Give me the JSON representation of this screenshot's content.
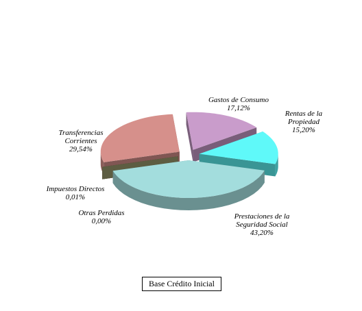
{
  "chart_data": {
    "type": "pie",
    "categories": [
      "Gastos de Consumo",
      "Rentas de la Propiedad",
      "Prestaciones de la Seguridad Social",
      "Otras Perdidas",
      "Impuestos Directos",
      "Transferencias Corrientes"
    ],
    "values": [
      17.12,
      15.2,
      43.2,
      0.0,
      0.01,
      29.54
    ],
    "value_labels": [
      "17,12%",
      "15,20%",
      "43,20%",
      "0,00%",
      "0,01%",
      "29,54%"
    ],
    "colors": [
      "#c99ccb",
      "#5ff9f9",
      "#a3dddd",
      "#9b9b6e",
      "#a33a3a",
      "#d6908b"
    ],
    "series_name": "Base Crédito Inicial"
  }
}
